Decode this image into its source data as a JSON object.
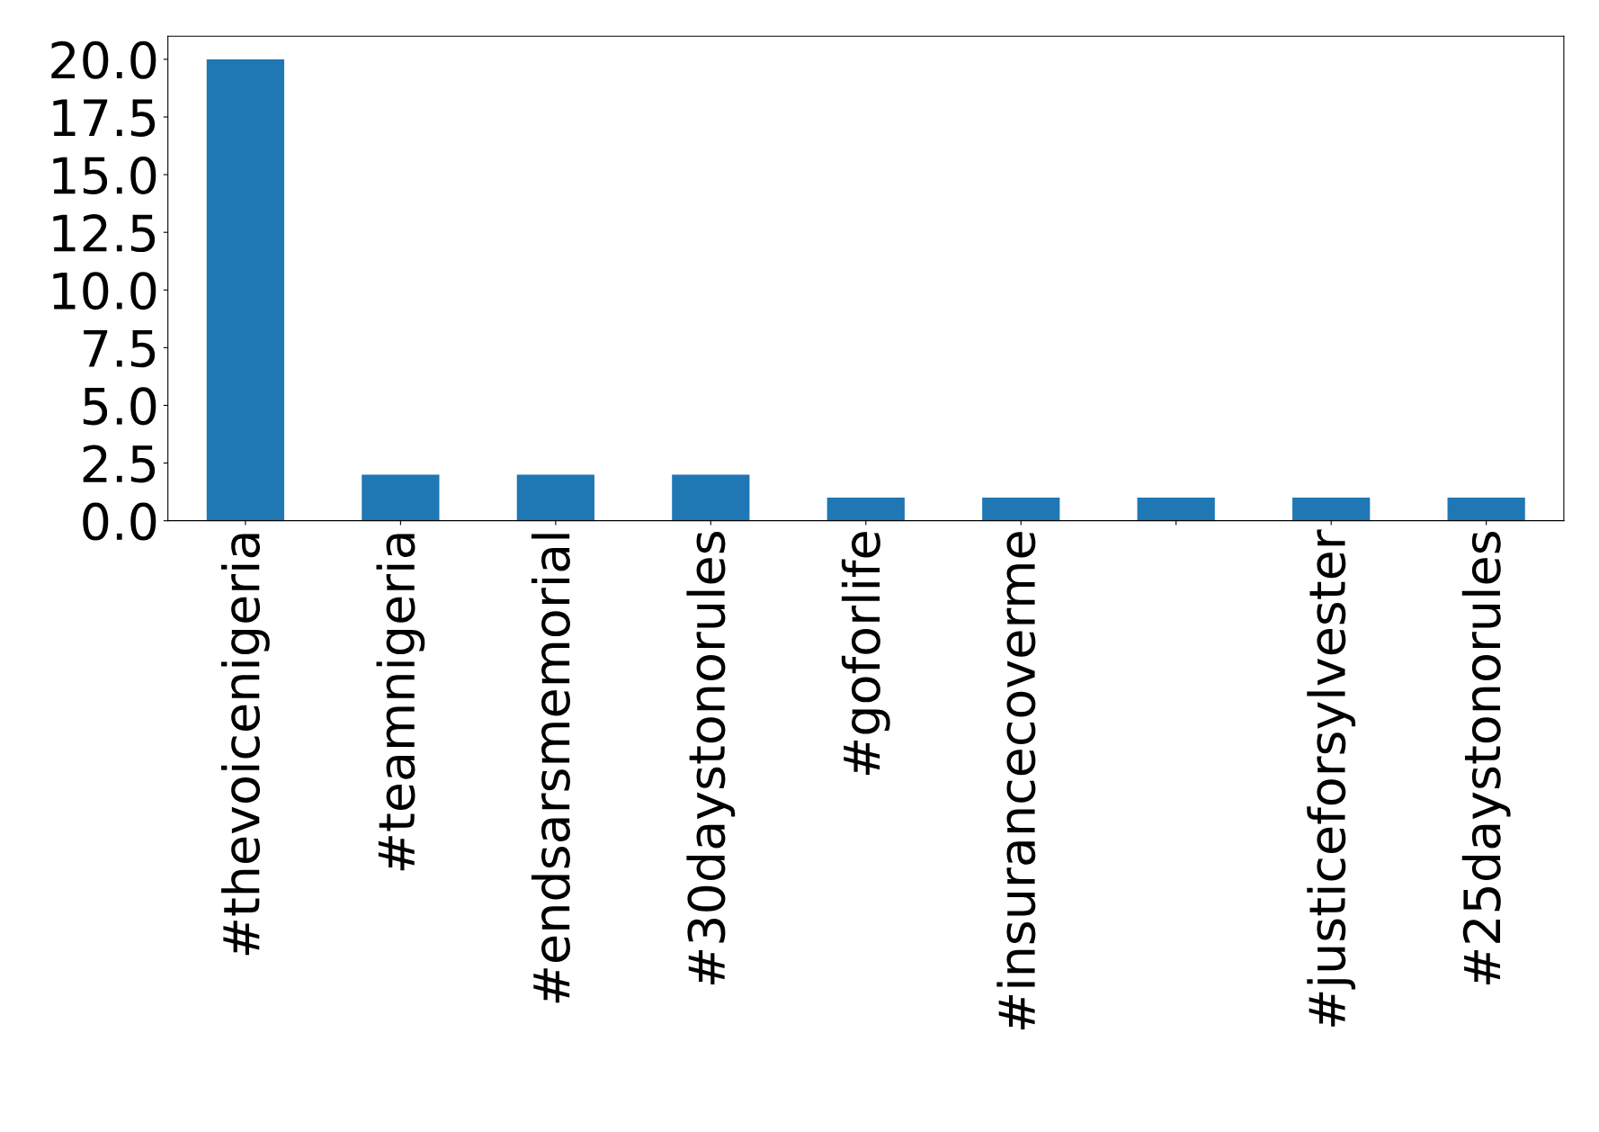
{
  "chart_data": {
    "type": "bar",
    "categories": [
      "#thevoicenigeria",
      "#teamnigeria",
      "#endsarsmemorial",
      "#30daystonorules",
      "#goforlife",
      "#insurancecoverme",
      null,
      "#justiceforsylvester",
      "#25daystonorules"
    ],
    "values": [
      20,
      2,
      2,
      2,
      1,
      1,
      1,
      1,
      1
    ],
    "color": "#1f77b4",
    "ylim": [
      0,
      21
    ],
    "yticks": [
      {
        "value": 0,
        "label": "0.0"
      },
      {
        "value": 2.5,
        "label": "2.5"
      },
      {
        "value": 5,
        "label": "5.0"
      },
      {
        "value": 7.5,
        "label": "7.5"
      },
      {
        "value": 10,
        "label": "10.0"
      },
      {
        "value": 12.5,
        "label": "12.5"
      },
      {
        "value": 15,
        "label": "15.0"
      },
      {
        "value": 17.5,
        "label": "17.5"
      },
      {
        "value": 20,
        "label": "20.0"
      }
    ],
    "grid": false,
    "legend": false
  }
}
